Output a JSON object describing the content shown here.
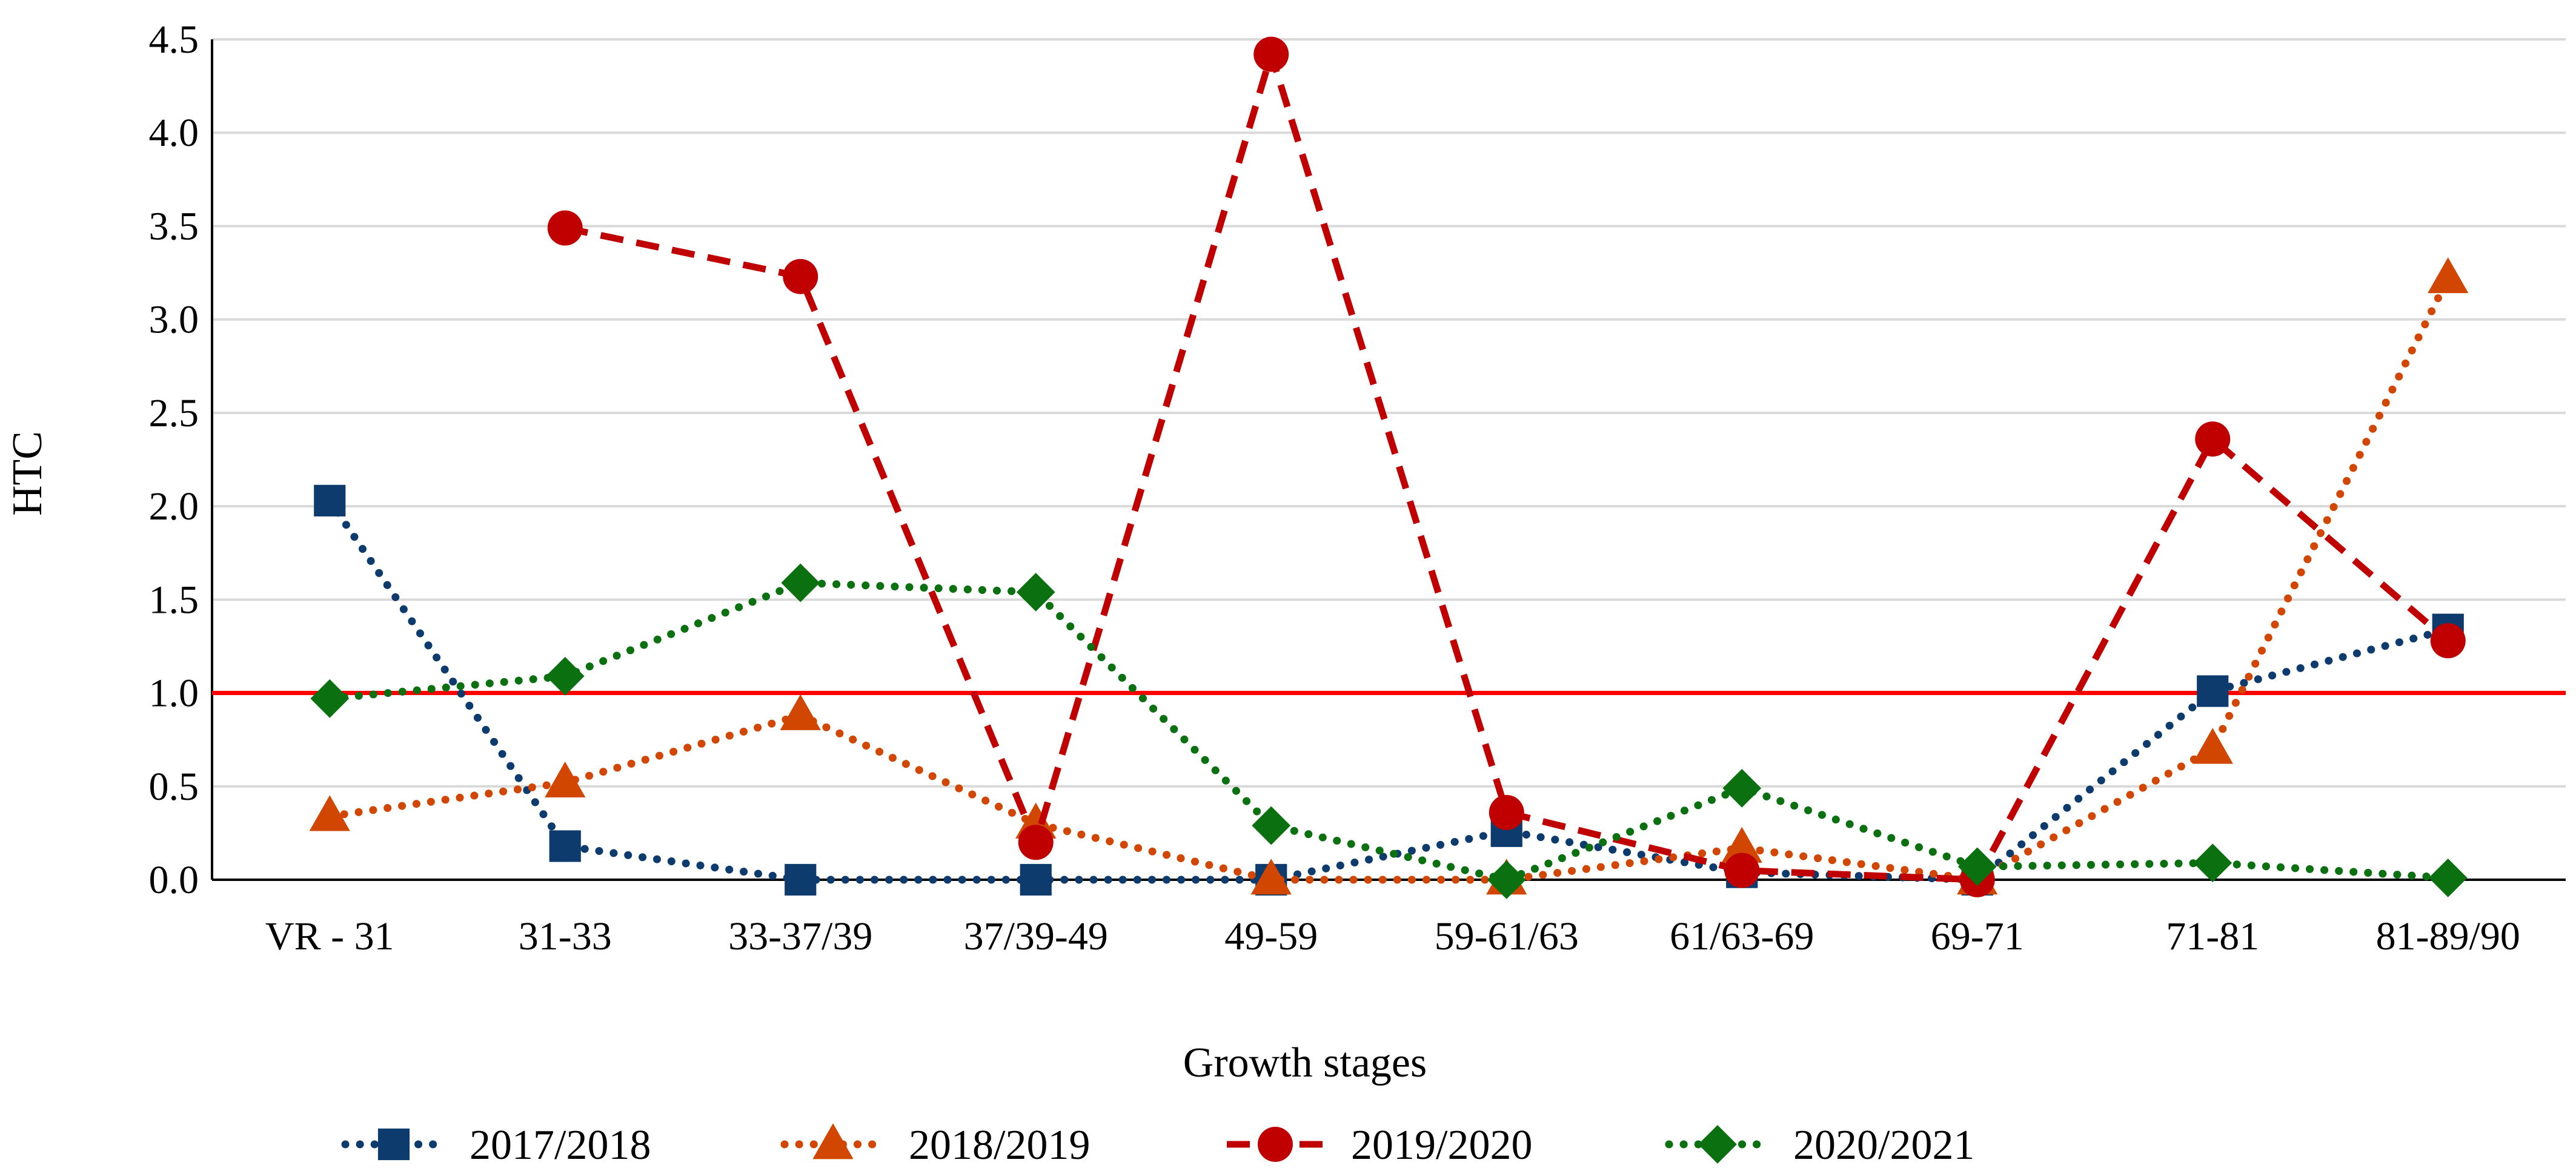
{
  "chart_data": {
    "type": "line",
    "title": "",
    "xlabel": "Growth stages",
    "ylabel": "HTC",
    "ylim": [
      0,
      4.5
    ],
    "yticks": [
      "0.0",
      "0.5",
      "1.0",
      "1.5",
      "2.0",
      "2.5",
      "3.0",
      "3.5",
      "4.0",
      "4.5"
    ],
    "grid": true,
    "legend_position": "bottom",
    "categories": [
      "VR - 31",
      "31-33",
      "33-37/39",
      "37/39-49",
      "49-59",
      "59-61/63",
      "61/63-69",
      "69-71",
      "71-81",
      "81-89/90"
    ],
    "reference_line": {
      "value": 1.0,
      "color": "#FF0000"
    },
    "series": [
      {
        "name": "2017/2018",
        "color": "#0D3B6E",
        "marker": "square",
        "dash": "dotted",
        "values": [
          2.03,
          0.18,
          0.0,
          0.0,
          0.0,
          0.26,
          0.04,
          0.0,
          1.01,
          1.34
        ]
      },
      {
        "name": "2018/2019",
        "color": "#D14600",
        "marker": "triangle",
        "dash": "dotted",
        "values": [
          0.34,
          0.52,
          0.88,
          0.3,
          0.0,
          0.0,
          0.17,
          0.0,
          0.7,
          3.22
        ]
      },
      {
        "name": "2019/2020",
        "color": "#C00000",
        "marker": "circle",
        "dash": "dashed",
        "values": [
          null,
          3.49,
          3.23,
          0.2,
          4.42,
          0.36,
          0.05,
          0.0,
          2.36,
          1.28
        ]
      },
      {
        "name": "2020/2021",
        "color": "#0A7010",
        "marker": "diamond",
        "dash": "dotted",
        "values": [
          0.97,
          1.09,
          1.59,
          1.54,
          0.29,
          0.0,
          0.49,
          0.07,
          0.09,
          0.01
        ]
      }
    ]
  }
}
